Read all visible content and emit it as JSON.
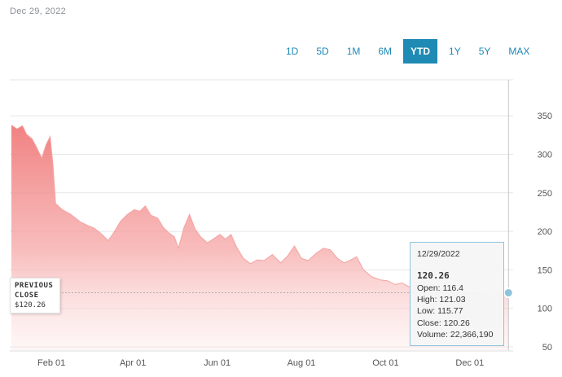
{
  "header": {
    "date": "Dec 29, 2022"
  },
  "ranges": {
    "buttons": [
      "1D",
      "5D",
      "1M",
      "6M",
      "YTD",
      "1Y",
      "5Y",
      "MAX"
    ],
    "active": "YTD"
  },
  "previous_close": {
    "label_line1": "PREVIOUS",
    "label_line2": "CLOSE",
    "value": "$120.26"
  },
  "tooltip": {
    "date": "12/29/2022",
    "price": "120.26",
    "open": "Open: 116.4",
    "high": "High: 121.03",
    "low": "Low: 115.77",
    "close": "Close: 120.26",
    "volume": "Volume: 22,366,190"
  },
  "colors": {
    "accent": "#1f8ab3",
    "area": "#f07b7b",
    "line": "#f4a3a3"
  },
  "chart_data": {
    "type": "area",
    "title": "",
    "xlabel": "",
    "ylabel": "",
    "ylim": [
      50,
      375
    ],
    "xlim": [
      "2022-01-03",
      "2022-12-30"
    ],
    "y_ticks": [
      50,
      100,
      150,
      200,
      250,
      300,
      350
    ],
    "x_ticks": [
      {
        "date": "2022-02-01",
        "label": "Feb 01"
      },
      {
        "date": "2022-04-01",
        "label": "Apr 01"
      },
      {
        "date": "2022-06-01",
        "label": "Jun 01"
      },
      {
        "date": "2022-08-01",
        "label": "Aug 01"
      },
      {
        "date": "2022-10-01",
        "label": "Oct 01"
      },
      {
        "date": "2022-12-01",
        "label": "Dec 01"
      }
    ],
    "previous_close": 120.26,
    "series": [
      {
        "points": [
          [
            "2022-01-03",
            338
          ],
          [
            "2022-01-07",
            333
          ],
          [
            "2022-01-11",
            337
          ],
          [
            "2022-01-14",
            326
          ],
          [
            "2022-01-18",
            320
          ],
          [
            "2022-01-21",
            310
          ],
          [
            "2022-01-25",
            295
          ],
          [
            "2022-01-28",
            312
          ],
          [
            "2022-01-31",
            323
          ],
          [
            "2022-02-02",
            288
          ],
          [
            "2022-02-04",
            236
          ],
          [
            "2022-02-09",
            228
          ],
          [
            "2022-02-15",
            222
          ],
          [
            "2022-02-22",
            212
          ],
          [
            "2022-02-28",
            207
          ],
          [
            "2022-03-04",
            204
          ],
          [
            "2022-03-09",
            197
          ],
          [
            "2022-03-14",
            188
          ],
          [
            "2022-03-18",
            198
          ],
          [
            "2022-03-23",
            213
          ],
          [
            "2022-03-28",
            222
          ],
          [
            "2022-04-02",
            228
          ],
          [
            "2022-04-06",
            226
          ],
          [
            "2022-04-10",
            233
          ],
          [
            "2022-04-14",
            221
          ],
          [
            "2022-04-19",
            217
          ],
          [
            "2022-04-23",
            205
          ],
          [
            "2022-04-27",
            198
          ],
          [
            "2022-05-01",
            193
          ],
          [
            "2022-05-04",
            178
          ],
          [
            "2022-05-08",
            205
          ],
          [
            "2022-05-12",
            222
          ],
          [
            "2022-05-16",
            203
          ],
          [
            "2022-05-20",
            193
          ],
          [
            "2022-05-25",
            185
          ],
          [
            "2022-05-30",
            191
          ],
          [
            "2022-06-03",
            196
          ],
          [
            "2022-06-07",
            190
          ],
          [
            "2022-06-11",
            196
          ],
          [
            "2022-06-15",
            180
          ],
          [
            "2022-06-20",
            165
          ],
          [
            "2022-06-25",
            158
          ],
          [
            "2022-06-30",
            163
          ],
          [
            "2022-07-05",
            162
          ],
          [
            "2022-07-11",
            170
          ],
          [
            "2022-07-17",
            159
          ],
          [
            "2022-07-22",
            168
          ],
          [
            "2022-07-27",
            181
          ],
          [
            "2022-08-01",
            165
          ],
          [
            "2022-08-06",
            162
          ],
          [
            "2022-08-12",
            172
          ],
          [
            "2022-08-17",
            178
          ],
          [
            "2022-08-22",
            176
          ],
          [
            "2022-08-27",
            165
          ],
          [
            "2022-09-01",
            159
          ],
          [
            "2022-09-06",
            163
          ],
          [
            "2022-09-10",
            167
          ],
          [
            "2022-09-15",
            150
          ],
          [
            "2022-09-21",
            141
          ],
          [
            "2022-09-27",
            137
          ],
          [
            "2022-10-02",
            136
          ],
          [
            "2022-10-08",
            131
          ],
          [
            "2022-10-13",
            133
          ],
          [
            "2022-10-18",
            128
          ],
          [
            "2022-10-24",
            131
          ],
          [
            "2022-10-29",
            127
          ],
          [
            "2022-11-04",
            126
          ],
          [
            "2022-11-10",
            124
          ],
          [
            "2022-11-16",
            123
          ],
          [
            "2022-11-22",
            119
          ],
          [
            "2022-11-28",
            118
          ],
          [
            "2022-12-03",
            121
          ],
          [
            "2022-12-09",
            118
          ],
          [
            "2022-12-15",
            116
          ],
          [
            "2022-12-21",
            117
          ],
          [
            "2022-12-29",
            120.26
          ]
        ]
      }
    ]
  }
}
